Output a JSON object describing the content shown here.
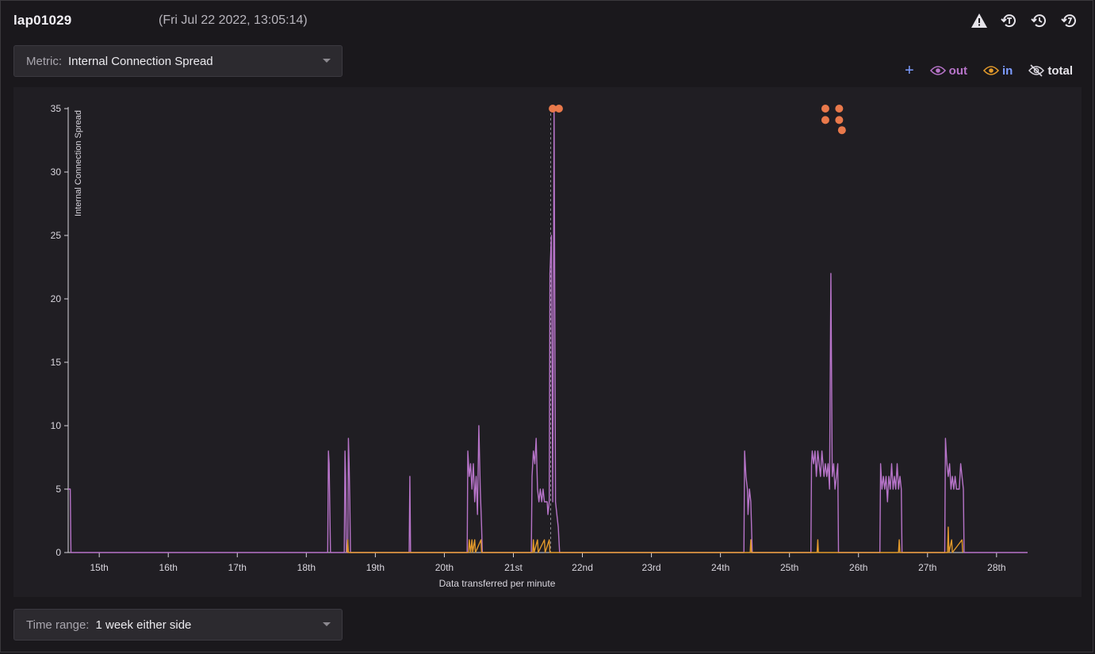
{
  "header": {
    "hostname": "lap01029",
    "timestamp": "(Fri Jul 22 2022, 13:05:14)",
    "icons": [
      "warning-icon",
      "history-t-icon",
      "history-icon",
      "history-alt-icon"
    ]
  },
  "metric_select": {
    "label": "Metric:",
    "value": "Internal Connection Spread"
  },
  "time_select": {
    "label": "Time range:",
    "value": "1 week either side"
  },
  "legend": {
    "add": "+",
    "out": "out",
    "in": "in",
    "total": "total"
  },
  "colors": {
    "out": "#b774c9",
    "in": "#e39a2b",
    "marker": "#e9794b",
    "legend_add": "#7d9cff",
    "axis": "#d9d6de",
    "background": "#1a181c",
    "panel": "#201e23"
  },
  "chart_data": {
    "type": "line",
    "xlabel": "Data transferred per minute",
    "ylabel": "Internal Connection Spread",
    "ylim": [
      0,
      35
    ],
    "yticks": [
      0,
      5,
      10,
      15,
      20,
      25,
      30,
      35
    ],
    "xlim": [
      14.55,
      28.45
    ],
    "xticks": [
      {
        "x": 15,
        "label": "15th"
      },
      {
        "x": 16,
        "label": "16th"
      },
      {
        "x": 17,
        "label": "17th"
      },
      {
        "x": 18,
        "label": "18th"
      },
      {
        "x": 19,
        "label": "19th"
      },
      {
        "x": 20,
        "label": "20th"
      },
      {
        "x": 21,
        "label": "21st"
      },
      {
        "x": 22,
        "label": "22nd"
      },
      {
        "x": 23,
        "label": "23rd"
      },
      {
        "x": 24,
        "label": "24th"
      },
      {
        "x": 25,
        "label": "25th"
      },
      {
        "x": 26,
        "label": "26th"
      },
      {
        "x": 27,
        "label": "27th"
      },
      {
        "x": 28,
        "label": "28th"
      }
    ],
    "cursor_x": 21.54,
    "series": [
      {
        "name": "out",
        "points": [
          [
            14.55,
            5
          ],
          [
            14.58,
            5
          ],
          [
            14.59,
            0
          ],
          [
            18.31,
            0
          ],
          [
            18.32,
            8
          ],
          [
            18.33,
            7
          ],
          [
            18.35,
            0
          ],
          [
            18.55,
            0
          ],
          [
            18.56,
            8
          ],
          [
            18.57,
            6
          ],
          [
            18.58,
            0
          ],
          [
            18.6,
            0
          ],
          [
            18.61,
            9
          ],
          [
            18.62,
            7
          ],
          [
            18.63,
            4
          ],
          [
            18.64,
            0
          ],
          [
            19.49,
            0
          ],
          [
            19.5,
            6
          ],
          [
            19.51,
            0
          ],
          [
            20.33,
            0
          ],
          [
            20.34,
            8
          ],
          [
            20.36,
            6
          ],
          [
            20.38,
            7
          ],
          [
            20.4,
            5
          ],
          [
            20.42,
            7
          ],
          [
            20.44,
            4
          ],
          [
            20.46,
            6
          ],
          [
            20.48,
            3
          ],
          [
            20.5,
            10
          ],
          [
            20.52,
            5
          ],
          [
            20.54,
            2
          ],
          [
            20.55,
            0
          ],
          [
            21.26,
            0
          ],
          [
            21.27,
            6
          ],
          [
            21.29,
            8
          ],
          [
            21.31,
            7
          ],
          [
            21.33,
            9
          ],
          [
            21.35,
            5
          ],
          [
            21.37,
            4
          ],
          [
            21.39,
            5
          ],
          [
            21.41,
            4
          ],
          [
            21.43,
            5
          ],
          [
            21.45,
            4
          ],
          [
            21.47,
            4
          ],
          [
            21.49,
            4
          ],
          [
            21.5,
            3
          ],
          [
            21.52,
            4
          ],
          [
            21.53,
            22
          ],
          [
            21.55,
            25
          ],
          [
            21.57,
            4
          ],
          [
            21.59,
            35
          ],
          [
            21.61,
            4
          ],
          [
            21.63,
            3
          ],
          [
            21.65,
            2
          ],
          [
            21.66,
            1
          ],
          [
            21.67,
            0
          ],
          [
            24.34,
            0
          ],
          [
            24.35,
            8
          ],
          [
            24.37,
            6
          ],
          [
            24.39,
            5
          ],
          [
            24.4,
            3
          ],
          [
            24.42,
            5
          ],
          [
            24.44,
            4
          ],
          [
            24.46,
            0
          ],
          [
            25.31,
            0
          ],
          [
            25.32,
            7
          ],
          [
            25.33,
            8
          ],
          [
            25.35,
            7
          ],
          [
            25.37,
            8
          ],
          [
            25.39,
            6
          ],
          [
            25.41,
            8
          ],
          [
            25.43,
            7
          ],
          [
            25.45,
            6
          ],
          [
            25.47,
            8
          ],
          [
            25.5,
            6
          ],
          [
            25.52,
            7
          ],
          [
            25.54,
            6
          ],
          [
            25.56,
            7
          ],
          [
            25.58,
            5
          ],
          [
            25.6,
            22
          ],
          [
            25.62,
            6
          ],
          [
            25.64,
            7
          ],
          [
            25.66,
            5
          ],
          [
            25.68,
            6
          ],
          [
            25.7,
            7
          ],
          [
            25.71,
            0
          ],
          [
            26.31,
            0
          ],
          [
            26.32,
            7
          ],
          [
            26.34,
            5
          ],
          [
            26.36,
            6
          ],
          [
            26.38,
            5
          ],
          [
            26.4,
            6
          ],
          [
            26.42,
            4
          ],
          [
            26.44,
            6
          ],
          [
            26.46,
            5
          ],
          [
            26.48,
            7
          ],
          [
            26.5,
            5
          ],
          [
            26.52,
            6
          ],
          [
            26.54,
            5
          ],
          [
            26.56,
            7
          ],
          [
            26.58,
            5
          ],
          [
            26.6,
            6
          ],
          [
            26.62,
            5
          ],
          [
            26.63,
            0
          ],
          [
            27.25,
            0
          ],
          [
            27.26,
            9
          ],
          [
            27.28,
            7
          ],
          [
            27.3,
            6
          ],
          [
            27.32,
            7
          ],
          [
            27.34,
            5
          ],
          [
            27.36,
            6
          ],
          [
            27.38,
            5
          ],
          [
            27.4,
            6
          ],
          [
            27.42,
            5
          ],
          [
            27.44,
            5
          ],
          [
            27.46,
            5
          ],
          [
            27.48,
            7
          ],
          [
            27.5,
            6
          ],
          [
            27.52,
            5
          ],
          [
            27.53,
            0
          ],
          [
            28.45,
            0
          ]
        ]
      },
      {
        "name": "in",
        "points": [
          [
            18.59,
            0
          ],
          [
            18.6,
            1
          ],
          [
            18.61,
            0
          ],
          [
            20.35,
            0
          ],
          [
            20.36,
            1
          ],
          [
            20.38,
            0
          ],
          [
            20.4,
            1
          ],
          [
            20.41,
            0
          ],
          [
            20.44,
            1
          ],
          [
            20.45,
            0
          ],
          [
            20.53,
            1
          ],
          [
            20.54,
            0
          ],
          [
            21.28,
            0
          ],
          [
            21.29,
            1
          ],
          [
            21.3,
            0
          ],
          [
            21.35,
            1
          ],
          [
            21.36,
            0
          ],
          [
            21.45,
            1
          ],
          [
            21.46,
            0
          ],
          [
            21.52,
            1
          ],
          [
            21.53,
            0
          ],
          [
            24.43,
            0
          ],
          [
            24.44,
            1
          ],
          [
            24.45,
            0
          ],
          [
            25.4,
            0
          ],
          [
            25.41,
            1
          ],
          [
            25.42,
            0
          ],
          [
            26.58,
            0
          ],
          [
            26.59,
            1
          ],
          [
            26.6,
            0
          ],
          [
            27.29,
            0
          ],
          [
            27.3,
            2
          ],
          [
            27.31,
            0
          ],
          [
            27.35,
            1
          ],
          [
            27.36,
            0
          ],
          [
            27.5,
            1
          ],
          [
            27.51,
            0
          ]
        ]
      }
    ],
    "markers": [
      {
        "x": 21.57,
        "y": 35
      },
      {
        "x": 21.66,
        "y": 35
      },
      {
        "x": 25.52,
        "y": 35
      },
      {
        "x": 25.72,
        "y": 35
      },
      {
        "x": 25.52,
        "y": 34.1
      },
      {
        "x": 25.72,
        "y": 34.1
      },
      {
        "x": 25.76,
        "y": 33.3
      }
    ]
  }
}
